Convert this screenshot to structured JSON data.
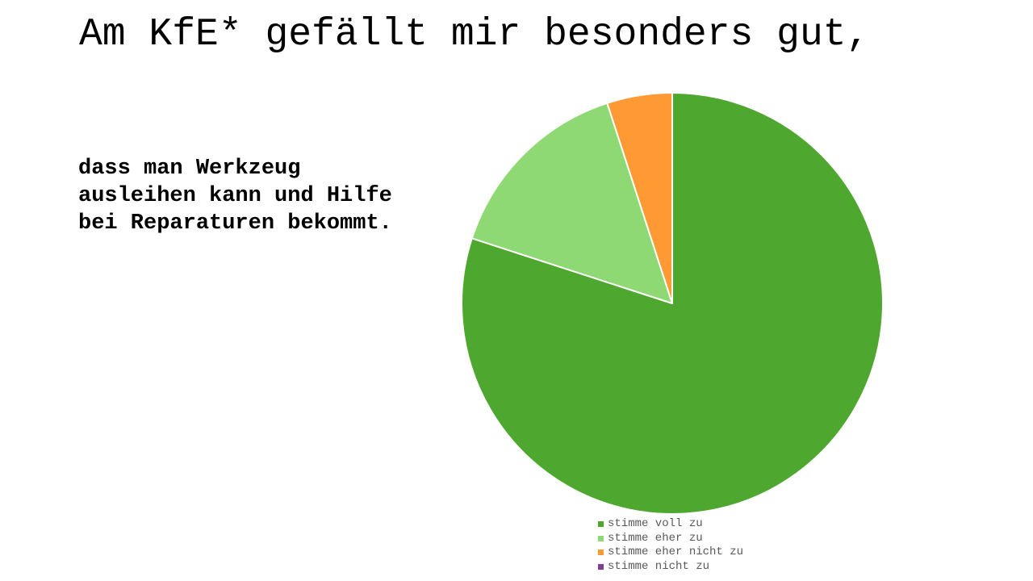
{
  "slide": {
    "title": "Am KfE* gefällt mir besonders gut,",
    "subtitle": "dass man Werkzeug ausleihen kann und Hilfe bei Reparaturen bekommt."
  },
  "chart_data": {
    "type": "pie",
    "title": "",
    "legend_position": "bottom",
    "slice_order": "clockwise-from-top",
    "series": [
      {
        "categories": [
          "stimme voll zu",
          "stimme eher zu",
          "stimme eher nicht zu",
          "stimme nicht zu"
        ],
        "values": [
          80,
          15,
          5,
          0
        ],
        "colors": [
          "#4ea72e",
          "#8ed973",
          "#ff9933",
          "#7f3f98"
        ]
      }
    ]
  }
}
